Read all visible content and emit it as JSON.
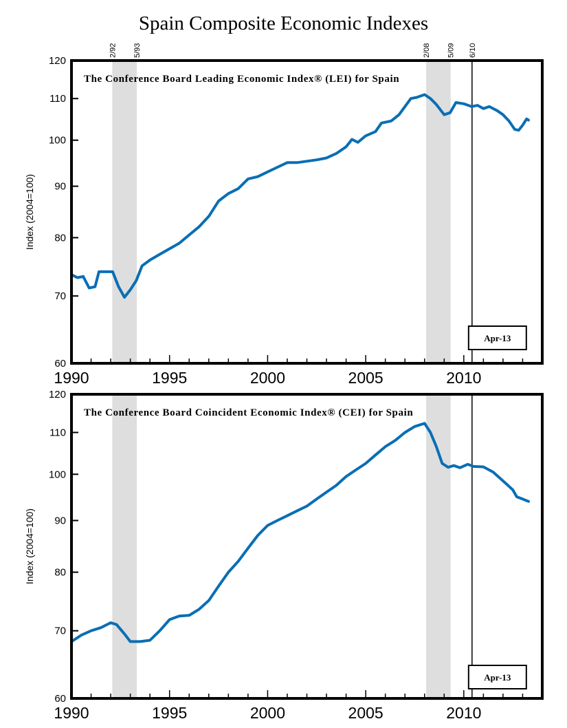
{
  "title": "Spain Composite Economic Indexes",
  "recession_labels": [
    "2/92",
    "5/93",
    "2/08",
    "5/09"
  ],
  "marker_label": "6/10",
  "chart_data": [
    {
      "type": "line",
      "title": "The Conference Board Leading Economic Index® (LEI) for Spain",
      "ylabel": "Index (2004=100)",
      "xlabel": "",
      "y_scale": "log",
      "ylim": [
        60,
        120
      ],
      "xlim": [
        1990,
        2014
      ],
      "yticks": [
        60,
        70,
        80,
        90,
        100,
        110,
        120
      ],
      "xticks": [
        1990,
        1995,
        2000,
        2005,
        2010
      ],
      "xtick_labels": [
        "1990",
        "1995",
        "2000",
        "2005",
        "2010"
      ],
      "recessions": [
        [
          1992.08,
          1993.33
        ],
        [
          2008.08,
          2009.33
        ]
      ],
      "vertical_marker": 2010.42,
      "date_box": "Apr-13",
      "line_color": "#0a6eb4",
      "shade_color": "#dedede",
      "series": [
        {
          "name": "LEI",
          "x": [
            1990.0,
            1990.3,
            1990.6,
            1990.9,
            1991.2,
            1991.4,
            1991.8,
            1992.1,
            1992.4,
            1992.7,
            1993.0,
            1993.3,
            1993.6,
            1994.0,
            1994.5,
            1995.0,
            1995.5,
            1996.0,
            1996.5,
            1997.0,
            1997.5,
            1998.0,
            1998.5,
            1999.0,
            1999.5,
            2000.0,
            2000.5,
            2001.0,
            2001.5,
            2002.0,
            2002.5,
            2003.0,
            2003.5,
            2004.0,
            2004.3,
            2004.6,
            2005.0,
            2005.5,
            2005.8,
            2006.3,
            2006.7,
            2007.0,
            2007.3,
            2007.6,
            2008.0,
            2008.3,
            2008.6,
            2009.0,
            2009.3,
            2009.6,
            2010.0,
            2010.4,
            2010.7,
            2011.0,
            2011.3,
            2011.7,
            2012.0,
            2012.3,
            2012.6,
            2012.8,
            2013.0,
            2013.2,
            2013.3
          ],
          "values": [
            73.5,
            73,
            73.2,
            71.3,
            71.5,
            74,
            74,
            74,
            71.5,
            69.8,
            71,
            72.5,
            75,
            76,
            77,
            78,
            79,
            80.5,
            82,
            84,
            87,
            88.5,
            89.5,
            91.5,
            92,
            93,
            94,
            95,
            95,
            95.3,
            95.6,
            96,
            97,
            98.5,
            100.2,
            99.5,
            101,
            102,
            104,
            104.5,
            106,
            108,
            110,
            110.3,
            111,
            110,
            108.5,
            106,
            106.5,
            109,
            108.7,
            108,
            108.3,
            107.5,
            108,
            107,
            106,
            104.5,
            102.5,
            102.3,
            103.5,
            105,
            104.7
          ]
        }
      ]
    },
    {
      "type": "line",
      "title": "The Conference Board Coincident Economic Index® (CEI) for Spain",
      "ylabel": "Index (2004=100)",
      "xlabel": "",
      "y_scale": "log",
      "ylim": [
        60,
        120
      ],
      "xlim": [
        1990,
        2014
      ],
      "yticks": [
        60,
        70,
        80,
        90,
        100,
        110,
        120
      ],
      "xticks": [
        1990,
        1995,
        2000,
        2005,
        2010
      ],
      "xtick_labels": [
        "1990",
        "1995",
        "2000",
        "2005",
        "2010"
      ],
      "recessions": [
        [
          1992.08,
          1993.33
        ],
        [
          2008.08,
          2009.33
        ]
      ],
      "vertical_marker": 2010.42,
      "date_box": "Apr-13",
      "line_color": "#0a6eb4",
      "shade_color": "#dedede",
      "series": [
        {
          "name": "CEI",
          "x": [
            1990.0,
            1990.5,
            1991.0,
            1991.5,
            1992.0,
            1992.3,
            1992.7,
            1993.0,
            1993.5,
            1994.0,
            1994.5,
            1995.0,
            1995.5,
            1996.0,
            1996.5,
            1997.0,
            1997.5,
            1998.0,
            1998.5,
            1999.0,
            1999.5,
            2000.0,
            2000.5,
            2001.0,
            2001.5,
            2002.0,
            2002.5,
            2003.0,
            2003.5,
            2004.0,
            2004.5,
            2005.0,
            2005.5,
            2006.0,
            2006.5,
            2007.0,
            2007.5,
            2008.0,
            2008.3,
            2008.6,
            2008.9,
            2009.2,
            2009.5,
            2009.8,
            2010.2,
            2010.5,
            2011.0,
            2011.5,
            2012.0,
            2012.3,
            2012.5,
            2012.7,
            2013.0,
            2013.3
          ],
          "values": [
            68.3,
            69.3,
            70,
            70.5,
            71.3,
            71,
            69.5,
            68.3,
            68.3,
            68.5,
            70,
            71.8,
            72.4,
            72.5,
            73.5,
            75,
            77.5,
            80,
            82,
            84.5,
            87,
            89,
            90,
            91,
            92,
            93,
            94.5,
            96,
            97.5,
            99.5,
            101,
            102.5,
            104.5,
            106.5,
            108,
            110,
            111.5,
            112.3,
            110,
            106.5,
            102.5,
            101.6,
            102,
            101.5,
            102.3,
            101.8,
            101.7,
            100.5,
            98.5,
            97.3,
            96.5,
            95,
            94.5,
            94
          ]
        }
      ]
    }
  ]
}
